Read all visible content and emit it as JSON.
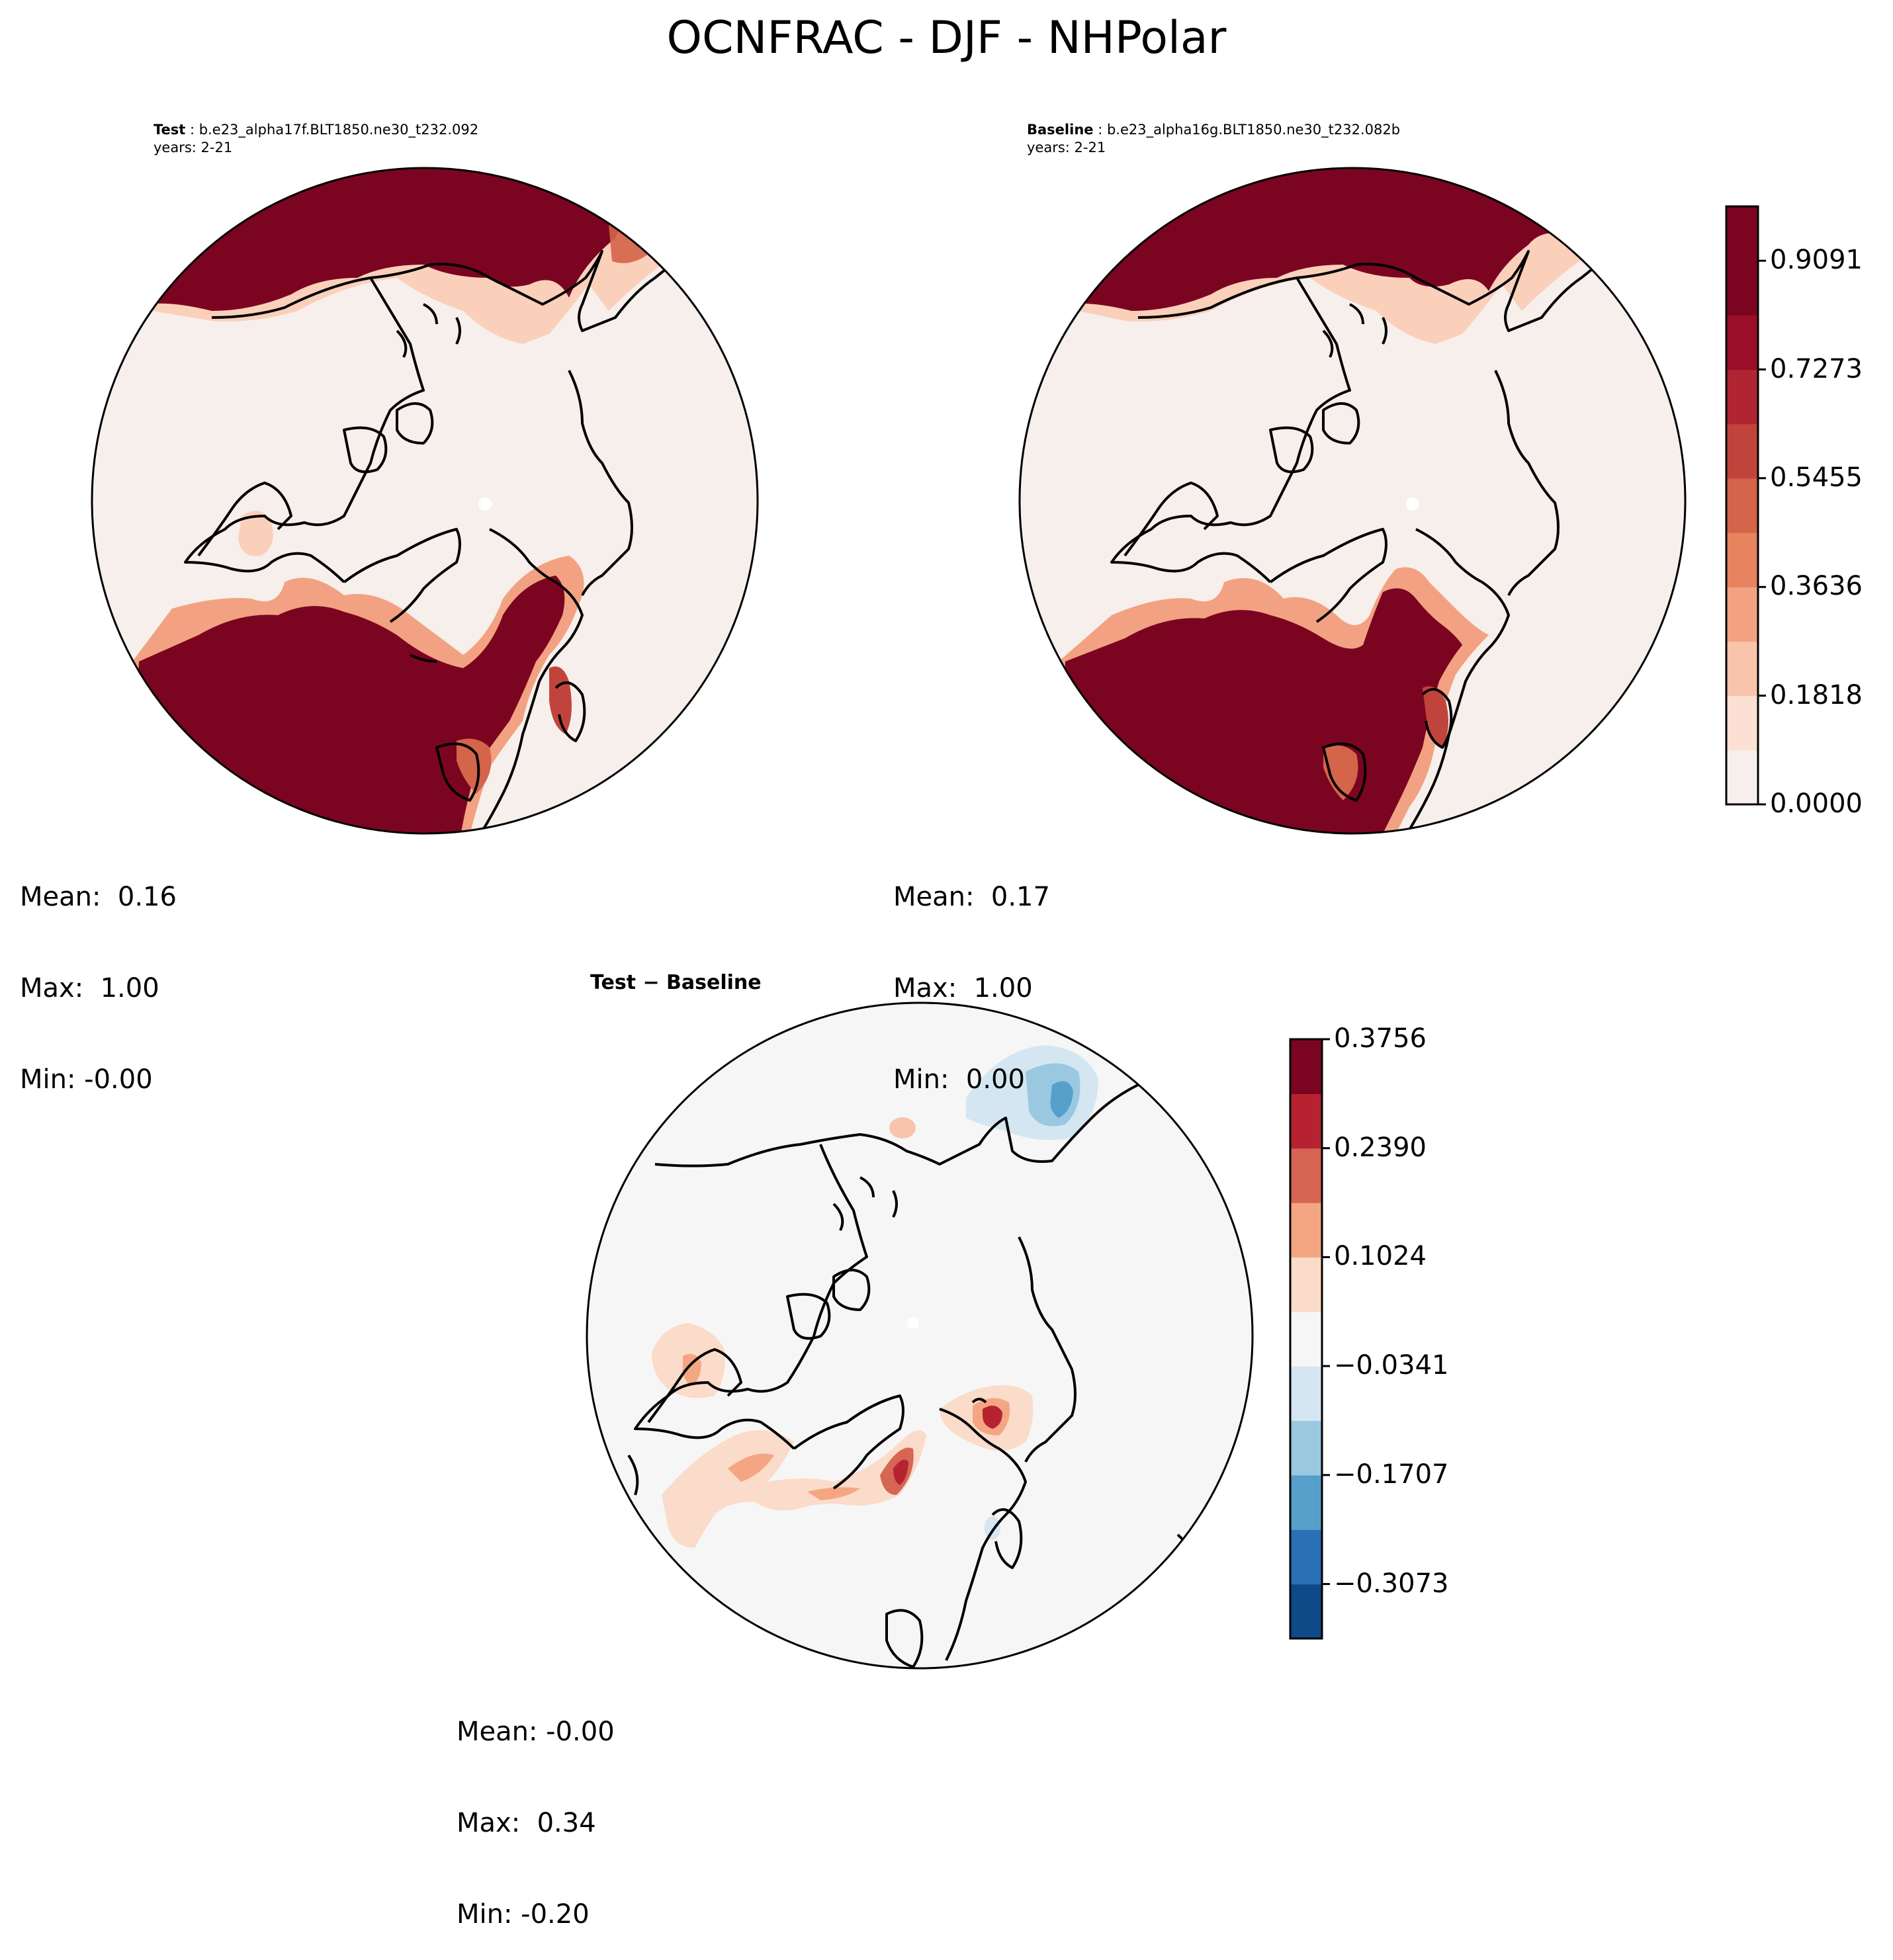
{
  "figure": {
    "title": "OCNFRAC - DJF - NHPolar"
  },
  "panels": {
    "test": {
      "label": "Test",
      "case": "b.e23_alpha17f.BLT1850.ne30_t232.092",
      "years": "years: 2-21",
      "stats": {
        "mean": "Mean:  0.16",
        "max": "Max:  1.00",
        "min": "Min: -0.00"
      }
    },
    "baseline": {
      "label": "Baseline",
      "case": "b.e23_alpha16g.BLT1850.ne30_t232.082b",
      "years": "years: 2-21",
      "stats": {
        "mean": "Mean:  0.17",
        "max": "Max:  1.00",
        "min": "Min:  0.00"
      }
    },
    "diff": {
      "title": "Test − Baseline",
      "stats": {
        "mean": "Mean: -0.00",
        "max": "Max:  0.34",
        "min": "Min: -0.20"
      }
    }
  },
  "chart_data": [
    {
      "type": "heatmap",
      "title": "Test",
      "projection": "north polar stereographic",
      "stats": {
        "mean": 0.16,
        "max": 1.0,
        "min": -0.0
      },
      "colormap": "Reds",
      "levels": [
        0.0,
        0.0909,
        0.1818,
        0.2727,
        0.3636,
        0.4545,
        0.5455,
        0.6364,
        0.7273,
        0.8182,
        0.9091,
        1.0
      ]
    },
    {
      "type": "heatmap",
      "title": "Baseline",
      "projection": "north polar stereographic",
      "stats": {
        "mean": 0.17,
        "max": 1.0,
        "min": 0.0
      },
      "colormap": "Reds",
      "levels": [
        0.0,
        0.0909,
        0.1818,
        0.2727,
        0.3636,
        0.4545,
        0.5455,
        0.6364,
        0.7273,
        0.8182,
        0.9091,
        1.0
      ]
    },
    {
      "type": "heatmap",
      "title": "Test − Baseline",
      "projection": "north polar stereographic",
      "stats": {
        "mean": -0.0,
        "max": 0.34,
        "min": -0.2
      },
      "colormap": "RdBu_r",
      "levels": [
        -0.3756,
        -0.3073,
        -0.239,
        -0.1707,
        -0.1024,
        -0.0341,
        0.0341,
        0.1024,
        0.1707,
        0.239,
        0.3073,
        0.3756
      ]
    }
  ],
  "colorbars": {
    "main": {
      "ticks": [
        "0.0000",
        "0.1818",
        "0.3636",
        "0.5455",
        "0.7273",
        "0.9091"
      ],
      "tick_values": [
        0.0,
        0.1818,
        0.3636,
        0.5455,
        0.7273,
        0.9091
      ],
      "range": [
        0.0,
        1.0
      ],
      "colors": [
        "#f7efeb",
        "#fce0d3",
        "#f8c4ab",
        "#f2a282",
        "#e7835f",
        "#d4644a",
        "#c1443c",
        "#b12532",
        "#9a0e27",
        "#7b0520",
        "#7b0520"
      ]
    },
    "diff": {
      "ticks": [
        "0.3756",
        "0.2390",
        "0.1024",
        "−0.0341",
        "−0.1707",
        "−0.3073"
      ],
      "tick_values": [
        0.3756,
        0.239,
        0.1024,
        -0.0341,
        -0.1707,
        -0.3073
      ],
      "range": [
        -0.3756,
        0.3756
      ],
      "colors": [
        "#0d4a87",
        "#2a70b5",
        "#579fcb",
        "#9ac8e0",
        "#d4e6f1",
        "#f6f6f6",
        "#fbdbc9",
        "#f4a683",
        "#d66553",
        "#b72231",
        "#7b0520"
      ]
    }
  },
  "colors": {
    "land_light": "#f7efeb",
    "sea_dark": "#7b0520",
    "diff_neutral": "#f6f6f6",
    "coastline": "#000000"
  }
}
